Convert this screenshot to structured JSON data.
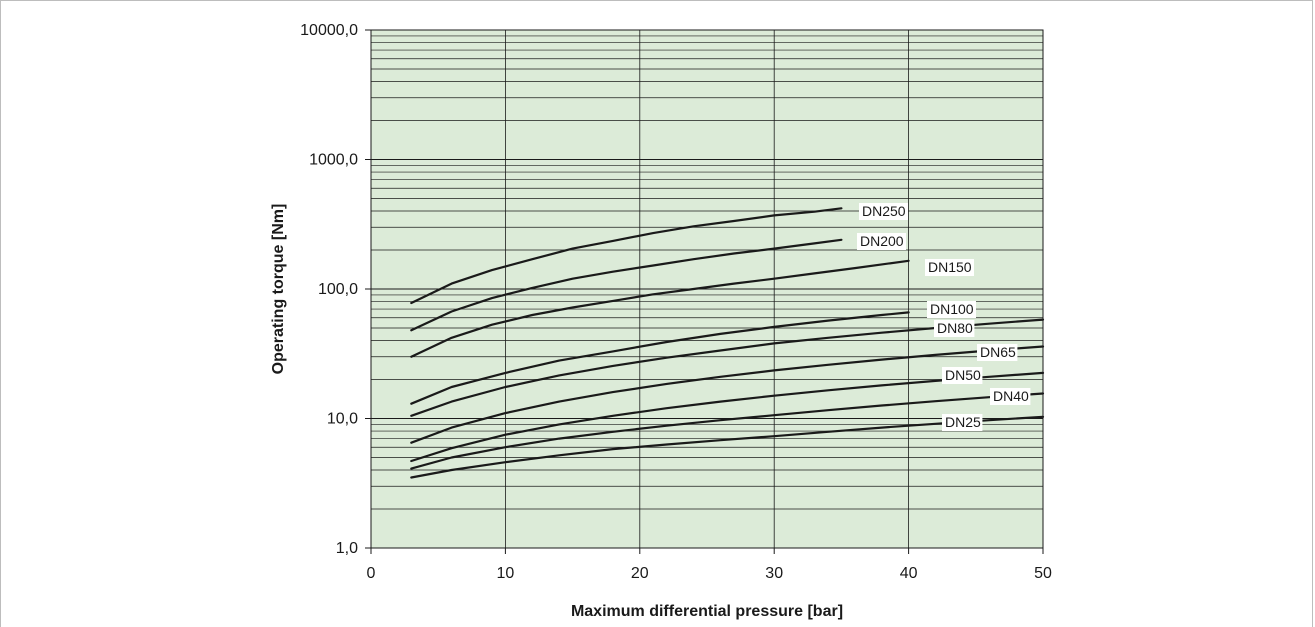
{
  "chart_data": {
    "type": "line",
    "title": "",
    "xlabel": "Maximum differential pressure [bar]",
    "ylabel": "Operating torque [Nm]",
    "x_scale": "linear",
    "y_scale": "log",
    "xlim": [
      0,
      50
    ],
    "ylim": [
      1,
      10000
    ],
    "x_ticks": [
      "0",
      "10",
      "20",
      "30",
      "40",
      "50"
    ],
    "y_ticks": [
      "1,0",
      "10,0",
      "100,0",
      "1000,0",
      "10000,0"
    ],
    "grid": true,
    "background_color": "#dcebd8",
    "line_color": "#1a1a1a",
    "series": [
      {
        "name": "DN250",
        "x": [
          3,
          6,
          9,
          12,
          15,
          18,
          21,
          24,
          27,
          30,
          33,
          35
        ],
        "y": [
          78,
          110,
          140,
          170,
          205,
          235,
          270,
          305,
          335,
          370,
          395,
          420
        ]
      },
      {
        "name": "DN200",
        "x": [
          3,
          6,
          9,
          12,
          15,
          18,
          21,
          24,
          27,
          30,
          33,
          35
        ],
        "y": [
          48,
          67,
          85,
          102,
          120,
          136,
          152,
          170,
          188,
          205,
          225,
          240
        ]
      },
      {
        "name": "DN150",
        "x": [
          3,
          6,
          9,
          12,
          15,
          18,
          21,
          24,
          27,
          30,
          33,
          36,
          40
        ],
        "y": [
          30,
          42,
          53,
          63,
          72,
          81,
          91,
          100,
          110,
          120,
          132,
          145,
          165
        ]
      },
      {
        "name": "DN100",
        "x": [
          3,
          6,
          10,
          14,
          18,
          22,
          26,
          30,
          34,
          38,
          40
        ],
        "y": [
          13,
          17.5,
          22.5,
          28,
          33,
          39,
          45,
          51,
          57,
          63,
          66
        ]
      },
      {
        "name": "DN80",
        "x": [
          3,
          6,
          10,
          14,
          18,
          22,
          26,
          30,
          34,
          38,
          42,
          46,
          50
        ],
        "y": [
          10.5,
          13.5,
          17.5,
          21.5,
          25.5,
          29.5,
          33.5,
          38,
          42,
          46,
          50,
          54,
          58
        ]
      },
      {
        "name": "DN65",
        "x": [
          3,
          6,
          10,
          14,
          18,
          22,
          26,
          30,
          34,
          38,
          42,
          46,
          50
        ],
        "y": [
          6.5,
          8.5,
          11,
          13.5,
          16,
          18.5,
          21,
          23.5,
          26,
          28.5,
          31,
          33.5,
          36
        ]
      },
      {
        "name": "DN50",
        "x": [
          3,
          6,
          10,
          14,
          18,
          22,
          26,
          30,
          34,
          38,
          42,
          46,
          50
        ],
        "y": [
          4.7,
          5.9,
          7.5,
          9,
          10.5,
          12,
          13.5,
          15,
          16.5,
          18,
          19.5,
          21,
          22.5
        ]
      },
      {
        "name": "DN40",
        "x": [
          3,
          6,
          10,
          14,
          18,
          22,
          26,
          30,
          34,
          38,
          42,
          46,
          50
        ],
        "y": [
          4.1,
          5,
          6,
          7,
          7.9,
          8.8,
          9.7,
          10.6,
          11.6,
          12.6,
          13.6,
          14.6,
          15.6
        ]
      },
      {
        "name": "DN25",
        "x": [
          3,
          6,
          10,
          14,
          18,
          22,
          26,
          30,
          34,
          38,
          42,
          46,
          50
        ],
        "y": [
          3.5,
          4,
          4.6,
          5.2,
          5.8,
          6.3,
          6.8,
          7.3,
          7.9,
          8.5,
          9.1,
          9.7,
          10.3
        ]
      }
    ]
  }
}
